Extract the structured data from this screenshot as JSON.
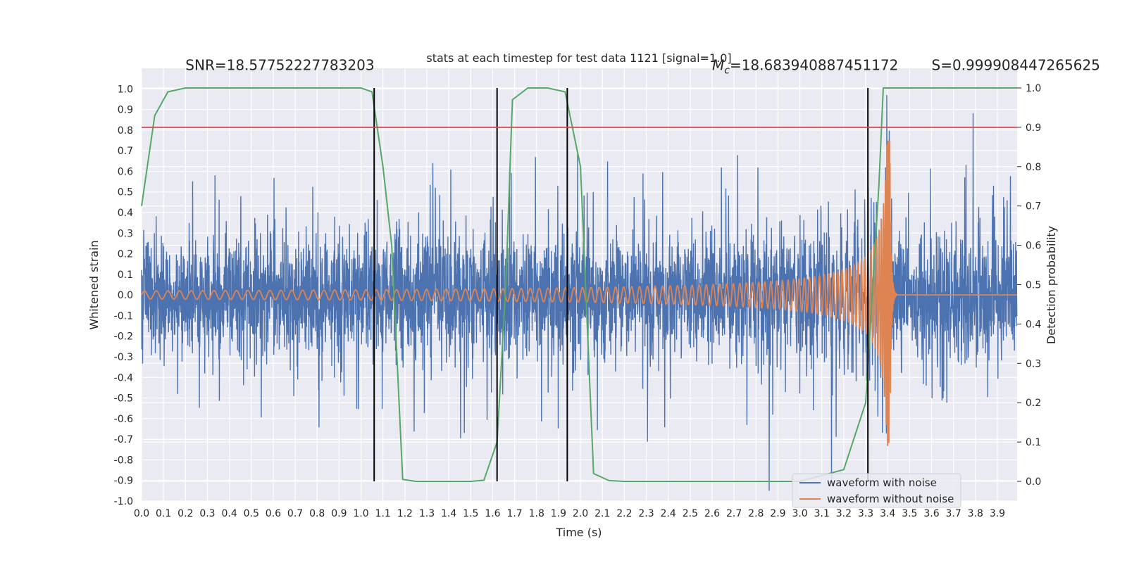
{
  "chart_data": {
    "type": "line",
    "title": "stats at each timestep for test data 1121 [signal=1.0]",
    "xlabel": "Time (s)",
    "ylabel": "Whitened strain",
    "y2label": "Detection probability",
    "xlim": [
      0.0,
      3.99
    ],
    "ylim": [
      -1.0,
      1.1
    ],
    "y2lim": [
      -0.05,
      1.05
    ],
    "x_ticks": [
      "0.0",
      "0.1",
      "0.2",
      "0.3",
      "0.4",
      "0.5",
      "0.6",
      "0.7",
      "0.8",
      "0.9",
      "1.0",
      "1.1",
      "1.2",
      "1.3",
      "1.4",
      "1.5",
      "1.6",
      "1.7",
      "1.8",
      "1.9",
      "2.0",
      "2.1",
      "2.2",
      "2.3",
      "2.4",
      "2.5",
      "2.6",
      "2.7",
      "2.8",
      "2.9",
      "3.0",
      "3.1",
      "3.2",
      "3.3",
      "3.4",
      "3.5",
      "3.6",
      "3.7",
      "3.8",
      "3.9"
    ],
    "y_ticks": [
      "-1.0",
      "-0.9",
      "-0.8",
      "-0.7",
      "-0.6",
      "-0.5",
      "-0.4",
      "-0.3",
      "-0.2",
      "-0.1",
      "0.0",
      "0.1",
      "0.2",
      "0.3",
      "0.4",
      "0.5",
      "0.6",
      "0.7",
      "0.8",
      "0.9",
      "1.0"
    ],
    "y2_ticks": [
      "0.0",
      "0.1",
      "0.2",
      "0.3",
      "0.4",
      "0.5",
      "0.6",
      "0.7",
      "0.8",
      "0.9",
      "1.0"
    ],
    "grid": true,
    "legend_position": "bottom-right",
    "colors": {
      "noisy": "#4c72b0",
      "clean": "#dd8452",
      "probability": "#55a868",
      "threshold": "#c44e52",
      "markers": "#000000",
      "background": "#eaeaf2",
      "grid": "#ffffff"
    },
    "series": [
      {
        "name": "waveform with noise",
        "axis": "left",
        "description": "noisy whitened strain, amplitude mostly within ±0.45 with spikes up to ~0.95"
      },
      {
        "name": "waveform without noise",
        "axis": "left",
        "chirp": {
          "t_start": 0.0,
          "t_merger": 3.41,
          "t_end_ringdown": 3.44,
          "amp_start": 0.02,
          "amp_peak": 0.75
        }
      },
      {
        "axis": "right",
        "x": [
          0.0,
          0.06,
          0.12,
          0.2,
          0.3,
          0.5,
          0.8,
          1.0,
          1.05,
          1.1,
          1.14,
          1.19,
          1.25,
          1.35,
          1.5,
          1.56,
          1.62,
          1.66,
          1.69,
          1.76,
          1.85,
          1.93,
          2.0,
          2.06,
          2.13,
          2.2,
          2.5,
          3.0,
          3.2,
          3.3,
          3.36,
          3.38,
          3.45,
          3.7,
          3.99
        ],
        "y": [
          0.7,
          0.93,
          0.99,
          1.0,
          1.0,
          1.0,
          1.0,
          1.0,
          0.99,
          0.8,
          0.6,
          0.005,
          0.0,
          0.0,
          0.0,
          0.003,
          0.1,
          0.5,
          0.97,
          1.0,
          1.0,
          0.99,
          0.8,
          0.02,
          0.002,
          0.0,
          0.0,
          0.0,
          0.03,
          0.2,
          0.75,
          1.0,
          1.0,
          1.0,
          1.0
        ]
      }
    ],
    "threshold_right": 0.9,
    "vertical_markers_x": [
      1.06,
      1.62,
      1.94,
      3.31
    ],
    "annotations": [
      {
        "text": "SNR=18.57752227783203",
        "x": 0.2,
        "y": 1.115
      },
      {
        "text": "M_c=18.683940887451172",
        "x": 2.6,
        "y": 1.115
      },
      {
        "text": "S=0.999908447265625",
        "x": 3.6,
        "y": 1.115
      }
    ]
  }
}
